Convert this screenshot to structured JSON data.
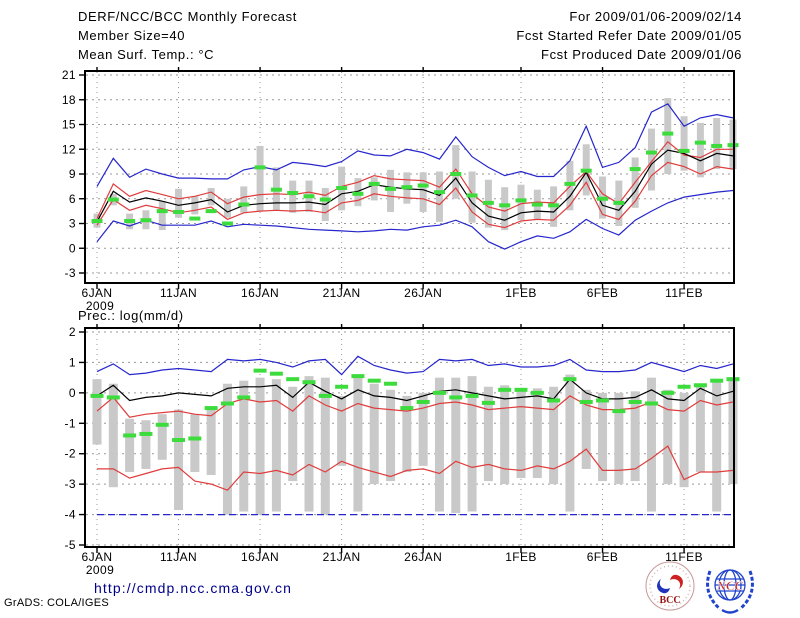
{
  "header": {
    "title": "DERF/NCC/BCC Monthly Forecast",
    "member_size": "Member Size=40",
    "forecast_range": "For 2009/01/06-2009/02/14",
    "fcst_started": "Fcst Started Refer Date 2009/01/05",
    "fcst_produced": "Fcst Produced Date 2009/01/06"
  },
  "footer": {
    "url": "http://cmdp.ncc.cma.gov.cn",
    "grads_credit": "GrADS: COLA/IGES",
    "logos": [
      {
        "name": "bcc-logo",
        "label": "BCC"
      },
      {
        "name": "ncc-logo",
        "label": "NCC"
      }
    ]
  },
  "colors": {
    "max_min_line": "#2626cc",
    "spread_line": "#e03c3c",
    "mean_line": "#000000",
    "obs_marker": "#3ddc3d",
    "ensemble_bar": "#c9c9c9",
    "grid": "#999999",
    "frame": "#000000",
    "url_text": "#00008b"
  },
  "chart_data": [
    {
      "type": "line+bar",
      "title": "Mean Surf. Temp.: °C",
      "grid": "dotted",
      "x_range_days": 40,
      "x_tick_days": [
        0,
        5,
        10,
        15,
        20,
        26,
        31,
        36
      ],
      "x_tick_labels": [
        "6JAN",
        "11JAN",
        "16JAN",
        "21JAN",
        "26JAN",
        "1FEB",
        "6FEB",
        "11FEB"
      ],
      "x_year_label": "2009",
      "ylim": [
        -3,
        21
      ],
      "yticks": [
        21,
        18,
        15,
        12,
        9,
        6,
        3,
        0,
        -3
      ],
      "series": [
        {
          "name": "ensemble-max",
          "color": "#2626cc",
          "style": "solid",
          "values": [
            7.5,
            10.9,
            8.6,
            9.6,
            9.0,
            8.5,
            8.5,
            8.4,
            8.4,
            9.5,
            9.9,
            9.5,
            10.4,
            10.2,
            9.9,
            10.5,
            11.8,
            11.3,
            11.2,
            12.0,
            11.6,
            10.8,
            13.5,
            11.1,
            9.8,
            8.8,
            9.3,
            8.7,
            8.7,
            10.6,
            14.8,
            9.8,
            10.4,
            12.2,
            16.5,
            17.5,
            14.8,
            15.8,
            16.2,
            15.8
          ]
        },
        {
          "name": "spread-upper",
          "color": "#e03c3c",
          "style": "solid",
          "values": [
            3.6,
            7.8,
            6.3,
            7.0,
            6.5,
            6.0,
            6.3,
            6.8,
            5.4,
            6.2,
            6.5,
            6.6,
            6.5,
            6.8,
            6.4,
            7.5,
            8.0,
            8.8,
            8.4,
            8.3,
            8.2,
            7.4,
            9.6,
            6.6,
            5.0,
            4.5,
            5.4,
            5.6,
            5.5,
            7.5,
            9.3,
            6.6,
            5.4,
            8.0,
            10.5,
            12.9,
            11.3,
            11.0,
            12.0,
            12.0
          ]
        },
        {
          "name": "ensemble-mean",
          "color": "#000000",
          "style": "solid",
          "values": [
            3.2,
            6.9,
            5.6,
            6.1,
            5.7,
            5.2,
            5.5,
            5.9,
            4.4,
            5.2,
            5.4,
            5.5,
            5.5,
            5.6,
            5.3,
            6.6,
            6.9,
            7.7,
            7.4,
            7.2,
            7.1,
            6.4,
            8.5,
            5.5,
            3.9,
            3.4,
            4.3,
            4.5,
            4.4,
            6.3,
            9.2,
            5.2,
            4.6,
            6.9,
            10.2,
            11.9,
            11.5,
            10.6,
            11.5,
            11.2
          ]
        },
        {
          "name": "spread-lower",
          "color": "#e03c3c",
          "style": "solid",
          "values": [
            2.8,
            5.9,
            4.6,
            5.2,
            4.8,
            4.3,
            4.6,
            5.0,
            3.5,
            4.3,
            4.5,
            4.6,
            4.5,
            4.6,
            4.3,
            5.5,
            5.8,
            6.6,
            6.3,
            6.1,
            6.0,
            5.3,
            7.3,
            4.4,
            2.9,
            2.5,
            3.3,
            3.5,
            3.4,
            5.2,
            8.0,
            4.1,
            3.5,
            5.7,
            8.8,
            10.4,
            9.9,
            9.0,
            9.9,
            9.6
          ]
        },
        {
          "name": "ensemble-min",
          "color": "#2626cc",
          "style": "solid",
          "values": [
            0.8,
            3.3,
            2.7,
            3.4,
            2.8,
            2.8,
            2.8,
            3.3,
            2.6,
            2.9,
            2.8,
            2.7,
            2.5,
            2.3,
            2.2,
            2.1,
            2.0,
            2.1,
            2.3,
            2.2,
            2.6,
            2.8,
            3.4,
            2.6,
            0.8,
            -0.1,
            0.8,
            1.5,
            1.2,
            2.0,
            3.5,
            2.4,
            1.6,
            3.4,
            4.5,
            5.5,
            6.2,
            6.5,
            6.8,
            7.0
          ]
        }
      ],
      "obs_markers": {
        "name": "observation",
        "color": "#3ddc3d",
        "values": [
          3.3,
          5.9,
          3.3,
          3.4,
          4.5,
          4.4,
          3.6,
          4.5,
          3.0,
          5.3,
          9.8,
          7.1,
          6.7,
          6.3,
          5.9,
          7.3,
          6.6,
          7.8,
          7.2,
          7.4,
          7.6,
          6.8,
          9.0,
          6.4,
          5.5,
          5.2,
          5.8,
          5.3,
          5.2,
          7.8,
          9.4,
          6.0,
          5.5,
          9.6,
          11.6,
          13.9,
          11.8,
          12.8,
          12.4,
          12.5
        ]
      },
      "bars": {
        "color": "#c9c9c9",
        "ranges": [
          [
            2.5,
            4.2
          ],
          [
            5.2,
            6.6
          ],
          [
            2.3,
            4.2
          ],
          [
            2.3,
            4.6
          ],
          [
            2.2,
            5.7
          ],
          [
            3.7,
            7.2
          ],
          [
            4.1,
            6.3
          ],
          [
            5.2,
            7.3
          ],
          [
            3.7,
            6.0
          ],
          [
            4.3,
            7.5
          ],
          [
            4.5,
            12.4
          ],
          [
            4.6,
            9.8
          ],
          [
            4.3,
            8.2
          ],
          [
            4.4,
            8.2
          ],
          [
            3.3,
            7.3
          ],
          [
            4.6,
            9.9
          ],
          [
            5.1,
            8.5
          ],
          [
            5.8,
            8.6
          ],
          [
            4.4,
            9.5
          ],
          [
            5.4,
            9.2
          ],
          [
            4.4,
            9.2
          ],
          [
            3.2,
            9.3
          ],
          [
            6.0,
            12.5
          ],
          [
            3.1,
            9.3
          ],
          [
            2.5,
            8.3
          ],
          [
            2.2,
            7.4
          ],
          [
            3.4,
            7.7
          ],
          [
            3.5,
            7.1
          ],
          [
            2.6,
            7.5
          ],
          [
            4.6,
            10.6
          ],
          [
            6.4,
            12.6
          ],
          [
            3.6,
            8.7
          ],
          [
            2.7,
            8.2
          ],
          [
            4.9,
            11.0
          ],
          [
            7.0,
            14.5
          ],
          [
            9.0,
            18.2
          ],
          [
            9.4,
            16.0
          ],
          [
            8.6,
            15.2
          ],
          [
            9.6,
            15.8
          ],
          [
            9.6,
            15.6
          ]
        ]
      }
    },
    {
      "type": "line+bar",
      "title": "Prec.: log(mm/d)",
      "grid": "dotted",
      "x_range_days": 40,
      "x_tick_days": [
        0,
        5,
        10,
        15,
        20,
        26,
        31,
        36
      ],
      "x_tick_labels": [
        "6JAN",
        "11JAN",
        "16JAN",
        "21JAN",
        "26JAN",
        "1FEB",
        "6FEB",
        "11FEB"
      ],
      "x_year_label": "2009",
      "ylim": [
        -5,
        2
      ],
      "yticks": [
        2,
        1,
        0,
        -1,
        -2,
        -3,
        -4,
        -5
      ],
      "series": [
        {
          "name": "ensemble-max",
          "color": "#2626cc",
          "style": "solid",
          "values": [
            0.7,
            0.95,
            0.6,
            0.65,
            0.75,
            0.8,
            0.75,
            0.7,
            1.1,
            1.05,
            1.1,
            1.0,
            0.85,
            1.05,
            1.1,
            0.6,
            1.2,
            0.9,
            0.75,
            0.65,
            0.7,
            1.1,
            1.05,
            1.1,
            0.9,
            0.95,
            0.85,
            0.85,
            0.9,
            1.1,
            0.75,
            0.7,
            0.7,
            0.75,
            1.0,
            0.85,
            0.7,
            0.9,
            0.8,
            0.95
          ]
        },
        {
          "name": "spread-upper",
          "color": "#e03c3c",
          "style": "solid",
          "values": [
            -0.6,
            -0.15,
            -0.8,
            -0.7,
            -0.65,
            -0.6,
            -0.7,
            -0.75,
            -0.35,
            -0.2,
            -0.3,
            -0.25,
            -0.6,
            -0.1,
            -0.4,
            -0.6,
            -0.35,
            -0.5,
            -0.55,
            -0.6,
            -0.5,
            -0.35,
            -0.3,
            -0.4,
            -0.55,
            -0.5,
            -0.45,
            -0.5,
            -0.55,
            -0.1,
            -0.4,
            -0.55,
            -0.55,
            -0.5,
            -0.3,
            -0.55,
            -0.6,
            -0.25,
            -0.4,
            -0.3
          ]
        },
        {
          "name": "ensemble-mean",
          "color": "#000000",
          "style": "solid",
          "values": [
            -0.1,
            0.25,
            -0.25,
            -0.15,
            -0.1,
            0.0,
            -0.05,
            -0.1,
            0.15,
            0.2,
            0.2,
            0.25,
            -0.15,
            0.35,
            0.05,
            -0.2,
            0.1,
            -0.1,
            -0.15,
            -0.25,
            -0.1,
            0.05,
            0.1,
            0.0,
            -0.1,
            -0.2,
            -0.15,
            -0.1,
            -0.2,
            0.45,
            0.0,
            -0.2,
            -0.2,
            -0.15,
            0.1,
            -0.2,
            -0.25,
            0.15,
            -0.1,
            0.05
          ]
        },
        {
          "name": "spread-lower",
          "color": "#e03c3c",
          "style": "solid",
          "values": [
            -2.5,
            -2.5,
            -2.8,
            -2.65,
            -2.5,
            -2.45,
            -2.9,
            -3.0,
            -3.2,
            -2.6,
            -2.65,
            -2.55,
            -2.7,
            -2.35,
            -2.6,
            -2.25,
            -2.45,
            -2.6,
            -2.75,
            -2.55,
            -2.5,
            -2.65,
            -2.25,
            -2.45,
            -2.35,
            -2.5,
            -2.55,
            -2.4,
            -2.5,
            -2.25,
            -1.85,
            -2.55,
            -2.55,
            -2.5,
            -2.15,
            -1.75,
            -2.85,
            -2.6,
            -2.6,
            -2.55
          ]
        },
        {
          "name": "ensemble-min",
          "color": "#2626cc",
          "style": "dashed",
          "values": [
            -4,
            -4,
            -4,
            -4,
            -4,
            -4,
            -4,
            -4,
            -4,
            -4,
            -4,
            -4,
            -4,
            -4,
            -4,
            -4,
            -4,
            -4,
            -4,
            -4,
            -4,
            -4,
            -4,
            -4,
            -4,
            -4,
            -4,
            -4,
            -4,
            -4,
            -4,
            -4,
            -4,
            -4,
            -4,
            -4,
            -4,
            -4,
            -4,
            -4
          ]
        }
      ],
      "obs_markers": {
        "name": "observation",
        "color": "#3ddc3d",
        "values": [
          -0.1,
          -0.15,
          -1.4,
          -1.35,
          -1.05,
          -1.55,
          -1.5,
          -0.5,
          -0.35,
          -0.15,
          0.73,
          0.63,
          0.45,
          0.35,
          -0.1,
          0.2,
          0.55,
          0.4,
          0.3,
          -0.5,
          -0.3,
          0.0,
          -0.15,
          -0.1,
          -0.33,
          0.1,
          0.1,
          0.0,
          -0.25,
          0.45,
          -0.3,
          -0.25,
          -0.6,
          -0.3,
          -0.35,
          0.0,
          0.2,
          0.25,
          0.4,
          0.45
        ]
      },
      "bars": {
        "color": "#c9c9c9",
        "ranges": [
          [
            -1.7,
            0.45
          ],
          [
            -3.1,
            0.3
          ],
          [
            -2.6,
            -0.85
          ],
          [
            -2.5,
            -0.9
          ],
          [
            -2.2,
            -0.7
          ],
          [
            -3.85,
            -0.55
          ],
          [
            -2.6,
            -0.7
          ],
          [
            -2.7,
            -0.45
          ],
          [
            -4,
            0.3
          ],
          [
            -3.9,
            0.4
          ],
          [
            -4,
            0.5
          ],
          [
            -3.9,
            0.45
          ],
          [
            -2.9,
            0.2
          ],
          [
            -3.9,
            0.55
          ],
          [
            -4,
            0.5
          ],
          [
            -2.4,
            -0.1
          ],
          [
            -3.9,
            0.6
          ],
          [
            -3,
            0.3
          ],
          [
            -2.9,
            0.1
          ],
          [
            -2.6,
            -0.1
          ],
          [
            -2.4,
            0.0
          ],
          [
            -3.9,
            0.5
          ],
          [
            -3.95,
            0.5
          ],
          [
            -3.9,
            0.55
          ],
          [
            -2.9,
            0.2
          ],
          [
            -3,
            0.25
          ],
          [
            -2.8,
            0.15
          ],
          [
            -2.8,
            0.15
          ],
          [
            -3,
            0.2
          ],
          [
            -3.9,
            0.6
          ],
          [
            -2.5,
            0.1
          ],
          [
            -2.9,
            0.0
          ],
          [
            -3,
            0.0
          ],
          [
            -2.9,
            0.05
          ],
          [
            -3.9,
            0.5
          ],
          [
            -3,
            0.1
          ],
          [
            -3.1,
            0.0
          ],
          [
            -2.6,
            0.3
          ],
          [
            -3.9,
            0.4
          ],
          [
            -3,
            0.5
          ]
        ]
      }
    }
  ]
}
